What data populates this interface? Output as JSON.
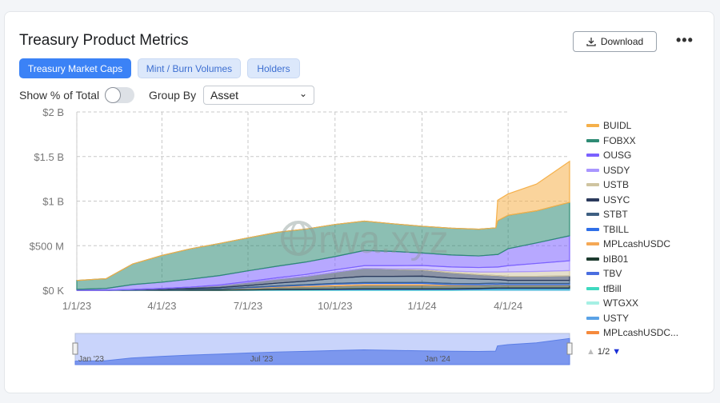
{
  "header": {
    "title": "Treasury Product Metrics",
    "download_label": "Download",
    "more_label": "•••"
  },
  "tabs": [
    {
      "label": "Treasury Market Caps",
      "active": true
    },
    {
      "label": "Mint / Burn Volumes"
    },
    {
      "label": "Holders"
    }
  ],
  "controls": {
    "show_pct_label": "Show % of Total",
    "show_pct_on": false,
    "group_by_label": "Group By",
    "group_by_value": "Asset"
  },
  "watermark": "rwa.xyz",
  "legend_pager": "1/2",
  "colors": {
    "accent": "#3b82f6"
  },
  "chart_data": {
    "type": "area",
    "stacked": true,
    "title": "Treasury Product Metrics",
    "xlabel": "",
    "ylabel": "",
    "ylim": [
      0,
      2000
    ],
    "y_unit": "M USD",
    "y_ticks": [
      {
        "value": 0,
        "label": "$0 K"
      },
      {
        "value": 500,
        "label": "$500 M"
      },
      {
        "value": 1000,
        "label": "$1 B"
      },
      {
        "value": 1500,
        "label": "$1.5 B"
      },
      {
        "value": 2000,
        "label": "$2 B"
      }
    ],
    "x_ticks": [
      {
        "date": "2023-01-01",
        "label": "1/1/23"
      },
      {
        "date": "2023-04-01",
        "label": "4/1/23"
      },
      {
        "date": "2023-07-01",
        "label": "7/1/23"
      },
      {
        "date": "2023-10-01",
        "label": "10/1/23"
      },
      {
        "date": "2024-01-01",
        "label": "1/1/24"
      },
      {
        "date": "2024-04-01",
        "label": "4/1/24"
      }
    ],
    "xlim": [
      "2023-01-01",
      "2024-06-05"
    ],
    "grid": true,
    "legend_position": "right",
    "navigator_labels": [
      {
        "date": "2023-01-01",
        "label": "Jan '23"
      },
      {
        "date": "2023-07-01",
        "label": "Jul '23"
      },
      {
        "date": "2024-01-01",
        "label": "Jan '24"
      }
    ],
    "x": [
      "2023-01-01",
      "2023-02-01",
      "2023-03-01",
      "2023-04-01",
      "2023-05-01",
      "2023-06-01",
      "2023-07-01",
      "2023-08-01",
      "2023-09-01",
      "2023-10-01",
      "2023-11-01",
      "2023-12-01",
      "2024-01-01",
      "2024-02-01",
      "2024-03-01",
      "2024-03-19",
      "2024-03-21",
      "2024-04-01",
      "2024-05-01",
      "2024-06-05"
    ],
    "series": [
      {
        "name": "BUIDL",
        "color": "#f5b04a",
        "values": [
          0,
          0,
          0,
          0,
          0,
          0,
          0,
          0,
          0,
          0,
          0,
          0,
          0,
          0,
          0,
          0,
          230,
          240,
          300,
          460
        ]
      },
      {
        "name": "FOBXX",
        "color": "#2e8b74",
        "values": [
          100,
          110,
          230,
          300,
          340,
          360,
          370,
          380,
          370,
          360,
          330,
          310,
          300,
          300,
          300,
          300,
          380,
          375,
          360,
          375
        ]
      },
      {
        "name": "OUSG",
        "color": "#7b61ff",
        "values": [
          10,
          20,
          55,
          70,
          90,
          105,
          120,
          130,
          140,
          150,
          170,
          160,
          140,
          135,
          130,
          140,
          140,
          190,
          230,
          280
        ]
      },
      {
        "name": "USDY",
        "color": "#a996ff",
        "values": [
          0,
          0,
          0,
          0,
          0,
          5,
          10,
          15,
          20,
          25,
          30,
          35,
          40,
          45,
          50,
          55,
          55,
          70,
          90,
          110
        ]
      },
      {
        "name": "USTB",
        "color": "#cfc4a0",
        "values": [
          0,
          0,
          0,
          0,
          0,
          0,
          0,
          0,
          0,
          0,
          0,
          5,
          10,
          20,
          30,
          40,
          40,
          50,
          55,
          60
        ]
      },
      {
        "name": "USYC",
        "color": "#2b3a5c",
        "values": [
          0,
          0,
          5,
          10,
          15,
          25,
          35,
          45,
          55,
          70,
          90,
          80,
          70,
          60,
          50,
          45,
          45,
          45,
          45,
          50
        ]
      },
      {
        "name": "STBT",
        "color": "#3e5f82",
        "values": [
          0,
          0,
          2,
          5,
          10,
          15,
          20,
          30,
          40,
          55,
          70,
          70,
          70,
          60,
          50,
          40,
          40,
          35,
          35,
          35
        ]
      },
      {
        "name": "TBILL",
        "color": "#2f6fe8",
        "values": [
          0,
          0,
          0,
          0,
          0,
          0,
          5,
          6,
          8,
          10,
          10,
          10,
          12,
          14,
          15,
          15,
          15,
          15,
          15,
          15
        ]
      },
      {
        "name": "MPLcashUSDC",
        "color": "#f5a855",
        "values": [
          0,
          0,
          0,
          0,
          0,
          0,
          5,
          10,
          15,
          20,
          20,
          20,
          20,
          10,
          5,
          5,
          5,
          5,
          5,
          5
        ]
      },
      {
        "name": "bIB01",
        "color": "#1d3b2f",
        "values": [
          0,
          0,
          2,
          5,
          10,
          15,
          20,
          25,
          30,
          35,
          40,
          40,
          40,
          35,
          35,
          35,
          35,
          30,
          30,
          30
        ]
      },
      {
        "name": "TBV",
        "color": "#4a6ee0",
        "values": [
          0,
          0,
          0,
          0,
          0,
          0,
          0,
          5,
          5,
          8,
          10,
          10,
          10,
          10,
          10,
          10,
          10,
          10,
          10,
          10
        ]
      },
      {
        "name": "tfBill",
        "color": "#3fd9c0",
        "values": [
          0,
          0,
          0,
          0,
          0,
          0,
          3,
          4,
          5,
          5,
          6,
          6,
          6,
          7,
          7,
          8,
          8,
          8,
          8,
          8
        ]
      },
      {
        "name": "WTGXX",
        "color": "#a6f0e4",
        "values": [
          0,
          0,
          0,
          0,
          0,
          0,
          0,
          0,
          0,
          0,
          0,
          0,
          0,
          0,
          0,
          2,
          2,
          3,
          3,
          3
        ]
      },
      {
        "name": "USTY",
        "color": "#5aa2e6",
        "values": [
          0,
          0,
          0,
          0,
          0,
          0,
          0,
          0,
          0,
          0,
          0,
          0,
          0,
          0,
          3,
          5,
          5,
          5,
          5,
          5
        ]
      },
      {
        "name": "MPLcashUSDC...",
        "color": "#f58a3c",
        "values": [
          0,
          0,
          0,
          0,
          0,
          0,
          0,
          0,
          0,
          0,
          0,
          0,
          0,
          0,
          0,
          0,
          0,
          0,
          0,
          0
        ]
      }
    ]
  }
}
